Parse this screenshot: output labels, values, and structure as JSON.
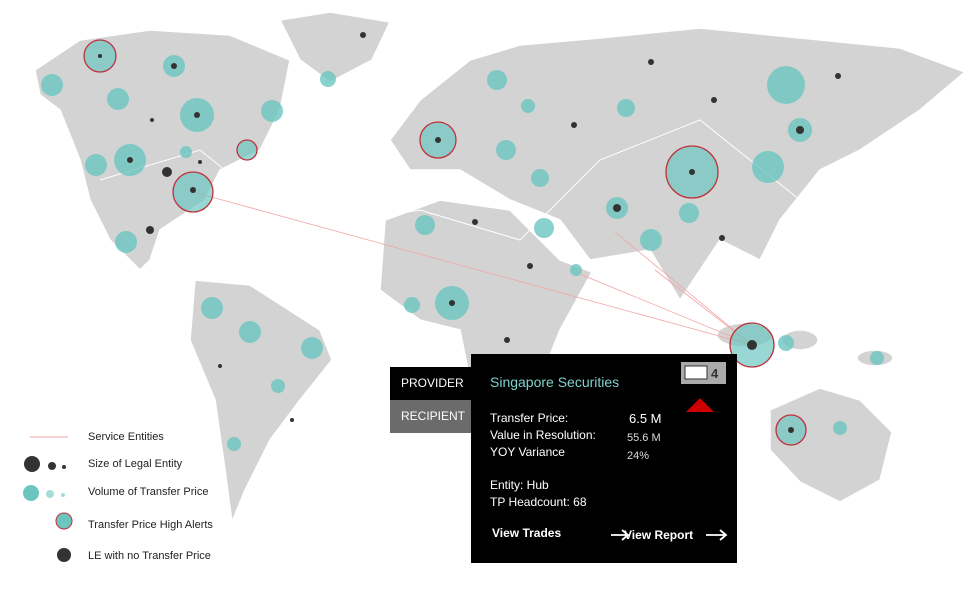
{
  "legend": {
    "items": [
      "Service Entities",
      "Size of Legal Entity",
      "Volume  of Transfer Price",
      "Transfer Price High Alerts",
      "LE with no Transfer Price"
    ]
  },
  "tooltip": {
    "tabs": [
      "PROVIDER",
      "RECIPIENT"
    ],
    "title": "Singapore Securities",
    "comments": "4",
    "metrics": [
      {
        "label": "Transfer Price:",
        "value": "6.5 M"
      },
      {
        "label": "Value in Resolution:",
        "value": "55.6 M"
      },
      {
        "label": "YOY Variance",
        "value": "24%"
      }
    ],
    "entity": "Entity: Hub",
    "headcount": "TP Headcount: 68",
    "actions": [
      "View Trades",
      "View Report"
    ]
  }
}
